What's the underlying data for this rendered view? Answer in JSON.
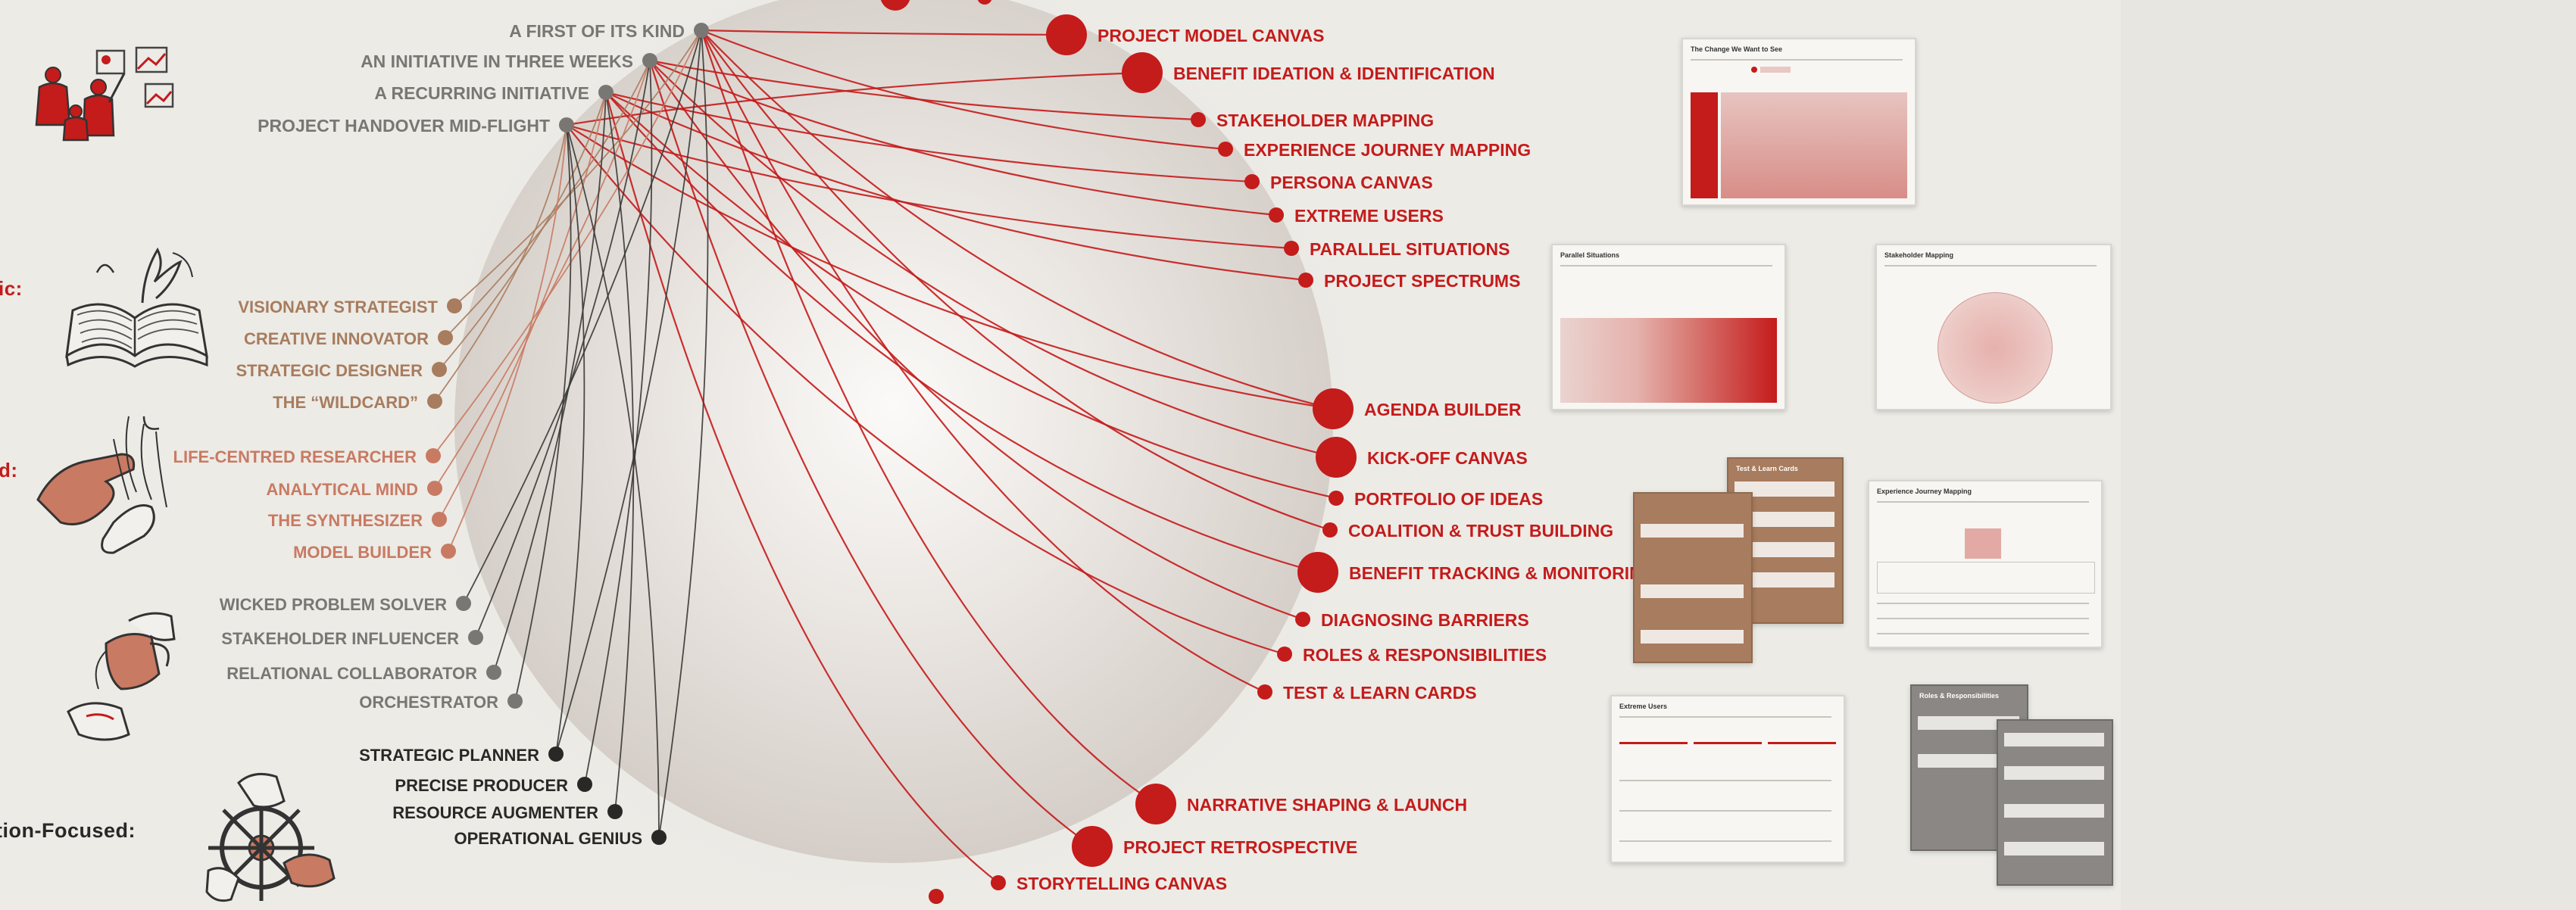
{
  "colors": {
    "red": "#c41b1b",
    "salmon": "#c97a62",
    "tan": "#a87c5e",
    "gray": "#7a7673",
    "black": "#2a2826",
    "disk": "#d9d3cd",
    "background": "#ecebe6"
  },
  "section_labels": [
    {
      "id": "strategic",
      "text": "ic:"
    },
    {
      "id": "human-centred",
      "text": "d:"
    },
    {
      "id": "action-focused",
      "text": "tion-Focused:"
    }
  ],
  "contexts": [
    {
      "id": "c1",
      "label": "A FIRST OF ITS KIND"
    },
    {
      "id": "c2",
      "label": "AN INITIATIVE IN THREE WEEKS"
    },
    {
      "id": "c3",
      "label": "A RECURRING INITIATIVE"
    },
    {
      "id": "c4",
      "label": "PROJECT HANDOVER MID-FLIGHT"
    }
  ],
  "roles": [
    {
      "id": "r1",
      "label": "VISIONARY STRATEGIST",
      "group": "tan"
    },
    {
      "id": "r2",
      "label": "CREATIVE INNOVATOR",
      "group": "tan"
    },
    {
      "id": "r3",
      "label": "STRATEGIC DESIGNER",
      "group": "tan"
    },
    {
      "id": "r4",
      "label": "THE “WILDCARD”",
      "group": "tan"
    },
    {
      "id": "r5",
      "label": "LIFE-CENTRED RESEARCHER",
      "group": "salmon"
    },
    {
      "id": "r6",
      "label": "ANALYTICAL MIND",
      "group": "salmon"
    },
    {
      "id": "r7",
      "label": "THE SYNTHESIZER",
      "group": "salmon"
    },
    {
      "id": "r8",
      "label": "MODEL BUILDER",
      "group": "salmon"
    },
    {
      "id": "r9",
      "label": "WICKED PROBLEM SOLVER",
      "group": "gray"
    },
    {
      "id": "r10",
      "label": "STAKEHOLDER INFLUENCER",
      "group": "gray"
    },
    {
      "id": "r11",
      "label": "RELATIONAL COLLABORATOR",
      "group": "gray"
    },
    {
      "id": "r12",
      "label": "ORCHESTRATOR",
      "group": "gray"
    },
    {
      "id": "r13",
      "label": "STRATEGIC PLANNER",
      "group": "black"
    },
    {
      "id": "r14",
      "label": "PRECISE PRODUCER",
      "group": "black"
    },
    {
      "id": "r15",
      "label": "RESOURCE AUGMENTER",
      "group": "black"
    },
    {
      "id": "r16",
      "label": "OPERATIONAL GENIUS",
      "group": "black"
    }
  ],
  "tools": [
    {
      "id": "t1",
      "label": "PROJECT MODEL CANVAS",
      "size": "large"
    },
    {
      "id": "t2",
      "label": "BENEFIT IDEATION & IDENTIFICATION",
      "size": "large"
    },
    {
      "id": "t3",
      "label": "STAKEHOLDER MAPPING",
      "size": "small"
    },
    {
      "id": "t4",
      "label": "EXPERIENCE JOURNEY MAPPING",
      "size": "small"
    },
    {
      "id": "t5",
      "label": "PERSONA CANVAS",
      "size": "small"
    },
    {
      "id": "t6",
      "label": "EXTREME USERS",
      "size": "small"
    },
    {
      "id": "t7",
      "label": "PARALLEL SITUATIONS",
      "size": "small"
    },
    {
      "id": "t8",
      "label": "PROJECT SPECTRUMS",
      "size": "small"
    },
    {
      "id": "t9",
      "label": "AGENDA BUILDER",
      "size": "large"
    },
    {
      "id": "t10",
      "label": "KICK-OFF CANVAS",
      "size": "large"
    },
    {
      "id": "t11",
      "label": "PORTFOLIO OF IDEAS",
      "size": "small"
    },
    {
      "id": "t12",
      "label": "COALITION & TRUST BUILDING",
      "size": "small"
    },
    {
      "id": "t13",
      "label": "BENEFIT TRACKING & MONITORING",
      "size": "large"
    },
    {
      "id": "t14",
      "label": "DIAGNOSING BARRIERS",
      "size": "small"
    },
    {
      "id": "t15",
      "label": "ROLES & RESPONSIBILITIES",
      "size": "small"
    },
    {
      "id": "t16",
      "label": "TEST & LEARN CARDS",
      "size": "small"
    },
    {
      "id": "t17",
      "label": "NARRATIVE SHAPING & LAUNCH",
      "size": "large"
    },
    {
      "id": "t18",
      "label": "PROJECT RETROSPECTIVE",
      "size": "large"
    },
    {
      "id": "t19",
      "label": "STORYTELLING CANVAS",
      "size": "small"
    }
  ],
  "thumbnails": [
    {
      "id": "th-change",
      "title": "The Change We Want to See"
    },
    {
      "id": "th-parallel",
      "title": "Parallel Situations"
    },
    {
      "id": "th-stakeholder",
      "title": "Stakeholder Mapping"
    },
    {
      "id": "th-learning",
      "title": "Test & Learn Cards"
    },
    {
      "id": "th-journey",
      "title": "Experience Journey Mapping"
    },
    {
      "id": "th-extreme",
      "title": "Extreme Users"
    },
    {
      "id": "th-roles",
      "title": "Roles & Responsibilities"
    }
  ],
  "links": [
    [
      "c1",
      "t1"
    ],
    [
      "c1",
      "t4"
    ],
    [
      "c1",
      "t9"
    ],
    [
      "c1",
      "t12"
    ],
    [
      "c1",
      "t16"
    ],
    [
      "c1",
      "t17"
    ],
    [
      "c2",
      "t3"
    ],
    [
      "c2",
      "t6"
    ],
    [
      "c2",
      "t10"
    ],
    [
      "c2",
      "t14"
    ],
    [
      "c2",
      "t18"
    ],
    [
      "c3",
      "t5"
    ],
    [
      "c3",
      "t8"
    ],
    [
      "c3",
      "t11"
    ],
    [
      "c3",
      "t13"
    ],
    [
      "c3",
      "t19"
    ],
    [
      "c4",
      "t2"
    ],
    [
      "c4",
      "t7"
    ],
    [
      "c4",
      "t15"
    ],
    [
      "c4",
      "t9"
    ],
    [
      "c1",
      "r1"
    ],
    [
      "c1",
      "r5"
    ],
    [
      "c1",
      "r9"
    ],
    [
      "c1",
      "r13"
    ],
    [
      "c1",
      "r16"
    ],
    [
      "c2",
      "r2"
    ],
    [
      "c2",
      "r6"
    ],
    [
      "c2",
      "r10"
    ],
    [
      "c2",
      "r14"
    ],
    [
      "c3",
      "r3"
    ],
    [
      "c3",
      "r7"
    ],
    [
      "c3",
      "r11"
    ],
    [
      "c3",
      "r15"
    ],
    [
      "c4",
      "r4"
    ],
    [
      "c4",
      "r8"
    ],
    [
      "c4",
      "r12"
    ],
    [
      "c4",
      "r13"
    ],
    [
      "c4",
      "r16"
    ]
  ]
}
